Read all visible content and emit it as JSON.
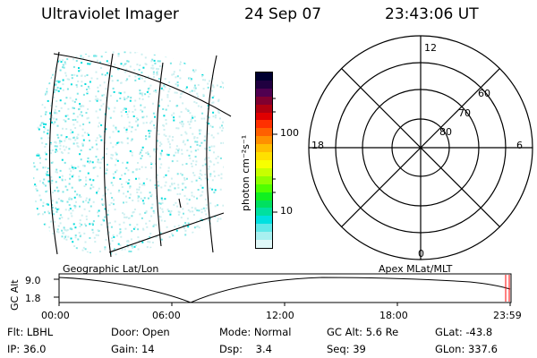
{
  "header": {
    "instrument": "Ultraviolet Imager",
    "date": "24 Sep 07",
    "time": "23:43:06 UT"
  },
  "colorbar": {
    "unit_label": "photon cm⁻²s⁻¹",
    "ticks": [
      "100",
      "10"
    ],
    "colors": [
      "#000030",
      "#200040",
      "#500050",
      "#800030",
      "#b00010",
      "#e00000",
      "#ff3000",
      "#ff6000",
      "#ff9000",
      "#ffbe00",
      "#ffe000",
      "#f8ff00",
      "#c8ff00",
      "#90ff00",
      "#50ff00",
      "#10f020",
      "#00e060",
      "#00e0a0",
      "#00e0e0",
      "#60e8e8",
      "#a8f0f0",
      "#e0f8f8"
    ]
  },
  "geo_map": {
    "label": "Geographic Lat/Lon"
  },
  "polar_plot": {
    "label": "Apex MLat/MLT",
    "mlt_labels": [
      "12",
      "18",
      "6",
      "0"
    ],
    "lat_labels": [
      "60",
      "70",
      "80"
    ]
  },
  "altitude_plot": {
    "ylabel": "GC Alt",
    "yticks": [
      "9.0",
      "1.8"
    ],
    "xticks": [
      "00:00",
      "06:00",
      "12:00",
      "18:00",
      "23:59"
    ],
    "current_marker_color": "#ff0000"
  },
  "footer": {
    "row1": [
      {
        "key": "Flt:",
        "value": "LBHL"
      },
      {
        "key": "Door:",
        "value": "Open"
      },
      {
        "key": "Mode:",
        "value": "Normal"
      },
      {
        "key": "GC Alt:",
        "value": "5.6 Re"
      },
      {
        "key": "GLat:",
        "value": "-43.8"
      }
    ],
    "row2": [
      {
        "key": "IP:",
        "value": "36.0"
      },
      {
        "key": "Gain:",
        "value": "14"
      },
      {
        "key": "Dsp:",
        "value": "3.4"
      },
      {
        "key": "Seq:",
        "value": "39"
      },
      {
        "key": "GLon:",
        "value": "337.6"
      }
    ]
  }
}
